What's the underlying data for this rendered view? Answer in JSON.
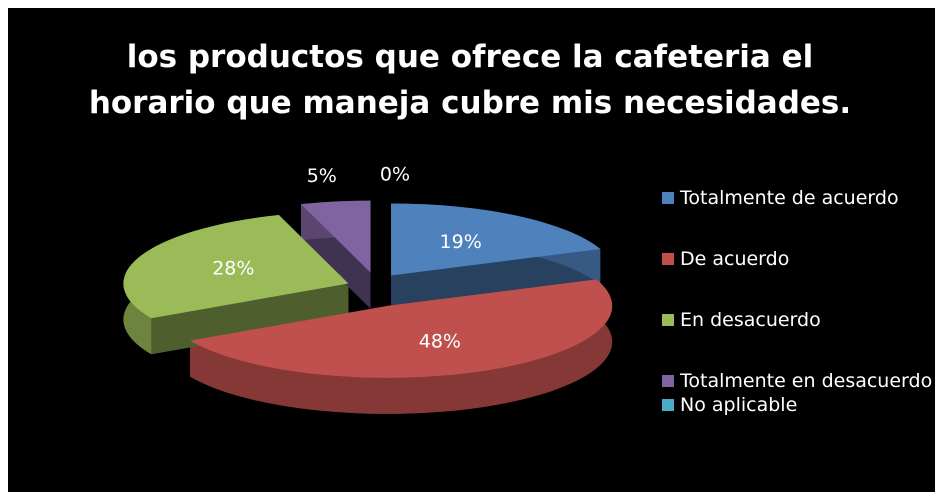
{
  "chart_data": {
    "type": "pie",
    "title": "los productos que ofrece la cafeteria  el horario que maneja cubre mis necesidades.",
    "categories": [
      "Totalmente de acuerdo",
      "De acuerdo",
      "En desacuerdo",
      "Totalmente en desacuerdo",
      "No aplicable"
    ],
    "values": [
      19,
      48,
      28,
      5,
      0
    ],
    "value_labels": [
      "19%",
      "48%",
      "28%",
      "5%",
      "0%"
    ],
    "colors": [
      "#4f81bd",
      "#c0504d",
      "#9bbb59",
      "#8064a2",
      "#4bacc6"
    ],
    "legend": "right"
  }
}
